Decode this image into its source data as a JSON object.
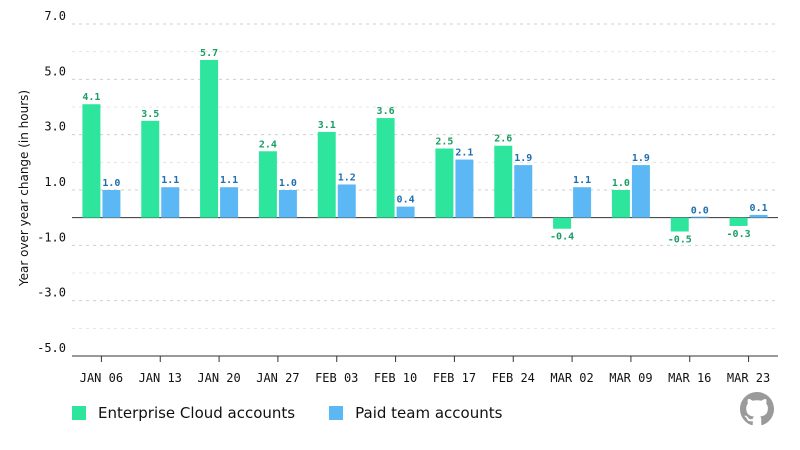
{
  "chart_data": {
    "type": "bar",
    "title": "",
    "xlabel": "",
    "ylabel": "Year over year change (in hours)",
    "ylim": [
      -5.0,
      7.0
    ],
    "yticks": [
      "7.0",
      "5.0",
      "3.0",
      "1.0",
      "-1.0",
      "-3.0",
      "-5.0"
    ],
    "ytick_values": [
      7,
      5,
      3,
      1,
      -1,
      -3,
      -5
    ],
    "grid": true,
    "legend_position": "bottom-left",
    "categories": [
      "JAN 06",
      "JAN 13",
      "JAN 20",
      "JAN 27",
      "FEB 03",
      "FEB 10",
      "FEB 17",
      "FEB 24",
      "MAR 02",
      "MAR 09",
      "MAR 16",
      "MAR 23"
    ],
    "series": [
      {
        "name": "Enterprise Cloud accounts",
        "color": "#2ee59d",
        "label_color": "#1a9e63",
        "values": [
          4.1,
          3.5,
          5.7,
          2.4,
          3.1,
          3.6,
          2.5,
          2.6,
          -0.4,
          1.0,
          -0.5,
          -0.3
        ],
        "labels": [
          "4.1",
          "3.5",
          "5.7",
          "2.4",
          "3.1",
          "3.6",
          "2.5",
          "2.6",
          "-0.4",
          "1.0",
          "-0.5",
          "-0.3"
        ]
      },
      {
        "name": "Paid team accounts",
        "color": "#5bb8f5",
        "label_color": "#1f6fb2",
        "values": [
          1.0,
          1.1,
          1.1,
          1.0,
          1.2,
          0.4,
          2.1,
          1.9,
          1.1,
          1.9,
          0.0,
          0.1
        ],
        "labels": [
          "1.0",
          "1.1",
          "1.1",
          "1.0",
          "1.2",
          "0.4",
          "2.1",
          "1.9",
          "1.1",
          "1.9",
          "0.0",
          "0.1"
        ]
      }
    ]
  },
  "icons": {
    "logo": "github-logo-icon"
  }
}
